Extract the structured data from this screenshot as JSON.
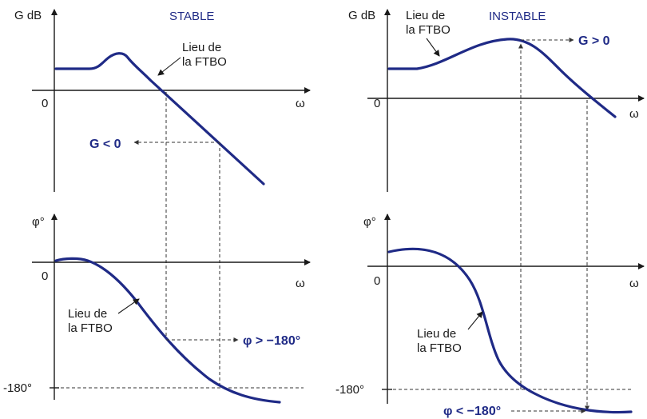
{
  "left": {
    "title": "STABLE",
    "gain_axis_label": "G dB",
    "phase_axis_label": "φ°",
    "zero_label_gain": "0",
    "zero_label_phase": "0",
    "omega_gain": "ω",
    "omega_phase": "ω",
    "minus180_label": "-180°",
    "gain_curve_label": [
      "Lieu de",
      "la FTBO"
    ],
    "phase_curve_label": [
      "Lieu de",
      "la FTBO"
    ],
    "gain_result": "G < 0",
    "phase_result": "φ > −180°"
  },
  "right": {
    "title": "INSTABLE",
    "gain_axis_label": "G dB",
    "phase_axis_label": "φ°",
    "zero_label_gain": "0",
    "zero_label_phase": "0",
    "omega_gain": "ω",
    "omega_phase": "ω",
    "minus180_label": "-180°",
    "gain_curve_label": [
      "Lieu de",
      "la FTBO"
    ],
    "phase_curve_label": [
      "Lieu de",
      "la FTBO"
    ],
    "gain_result": "G > 0",
    "phase_result": "φ < −180°"
  },
  "colors": {
    "curve": "#1f2a86",
    "axis": "#1a1a1a"
  }
}
